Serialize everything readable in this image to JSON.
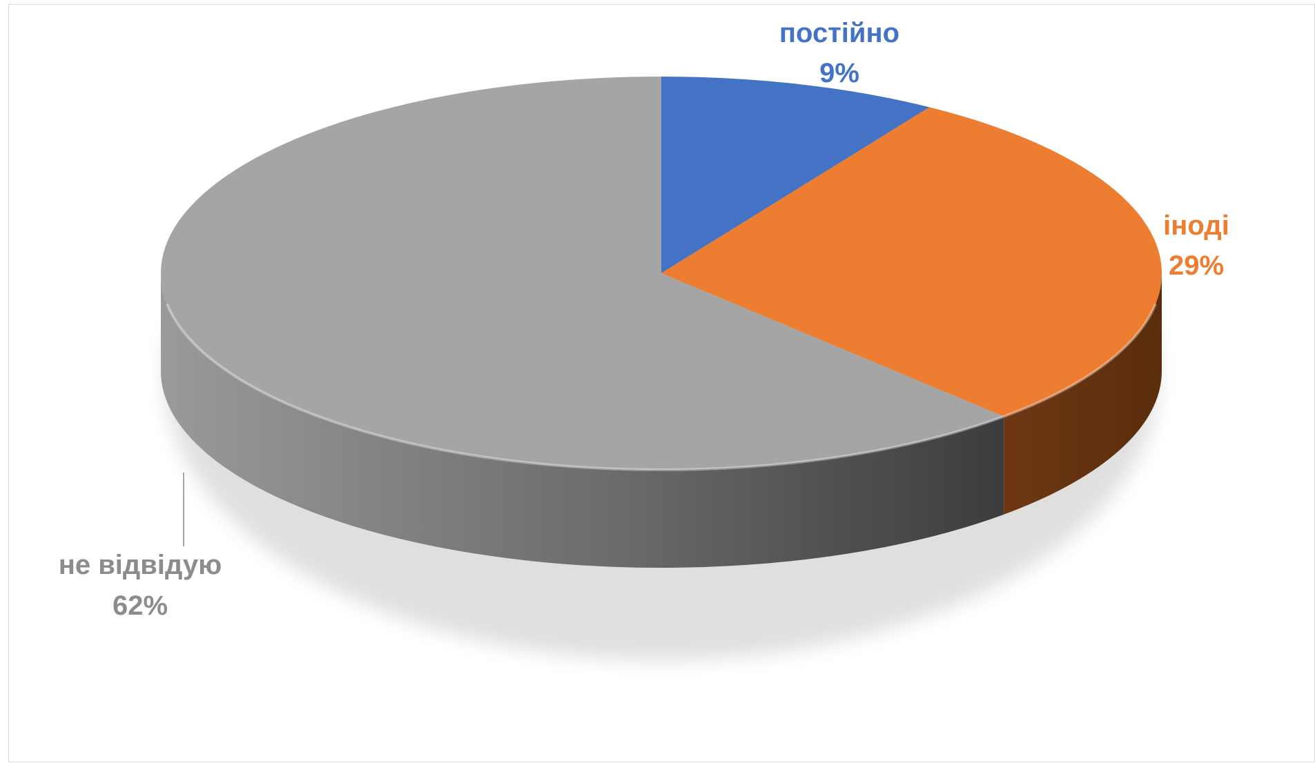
{
  "chart_data": {
    "type": "pie",
    "style": "3d",
    "title": "",
    "legend": "none",
    "categories": [
      "постійно",
      "іноді",
      "не відвідую"
    ],
    "values": [
      9,
      29,
      62
    ],
    "value_labels": [
      "9%",
      "29%",
      "62%"
    ],
    "colors": [
      "#4472c4",
      "#ed7d31",
      "#a5a5a5"
    ]
  }
}
